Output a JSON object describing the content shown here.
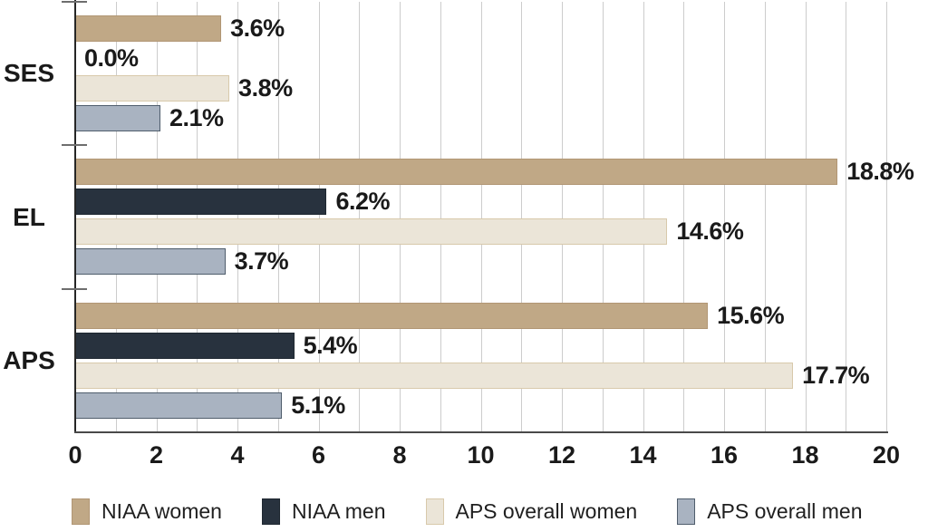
{
  "chart_data": {
    "type": "bar",
    "orientation": "horizontal",
    "title": "",
    "xlabel": "",
    "ylabel": "",
    "categories": [
      "SES",
      "EL",
      "APS"
    ],
    "series": [
      {
        "name": "NIAA women",
        "color": "#c0a886",
        "border_color": "#b19674",
        "values": [
          3.6,
          18.8,
          15.6
        ],
        "labels": [
          "3.6%",
          "18.8%",
          "15.6%"
        ]
      },
      {
        "name": "NIAA men",
        "color": "#28323e",
        "border_color": "#1f2831",
        "values": [
          0.0,
          6.2,
          5.4
        ],
        "labels": [
          "0.0%",
          "6.2%",
          "5.4%"
        ]
      },
      {
        "name": "APS overall women",
        "color": "#ebe5d8",
        "border_color": "#d8c9ab",
        "values": [
          3.8,
          14.6,
          17.7
        ],
        "labels": [
          "3.8%",
          "14.6%",
          "17.7%"
        ]
      },
      {
        "name": "APS overall men",
        "color": "#a9b3c1",
        "border_color": "#4f5d6c",
        "values": [
          2.1,
          3.7,
          5.1
        ],
        "labels": [
          "2.1%",
          "3.7%",
          "5.1%"
        ]
      }
    ],
    "xlim": [
      0,
      20
    ],
    "x_tick_values": [
      0,
      2,
      4,
      6,
      8,
      10,
      12,
      14,
      16,
      18,
      20
    ],
    "x_tick_labels": [
      "0",
      "2",
      "4",
      "6",
      "8",
      "10",
      "12",
      "14",
      "16",
      "18",
      "20"
    ],
    "grid_step": 1,
    "grid_on": true,
    "grid_color": "#cccccc",
    "axis_color": "#262626",
    "tick_mark_color": "#6e6e6e",
    "text_color": "#1a1a1a",
    "legend_position": "bottom"
  }
}
